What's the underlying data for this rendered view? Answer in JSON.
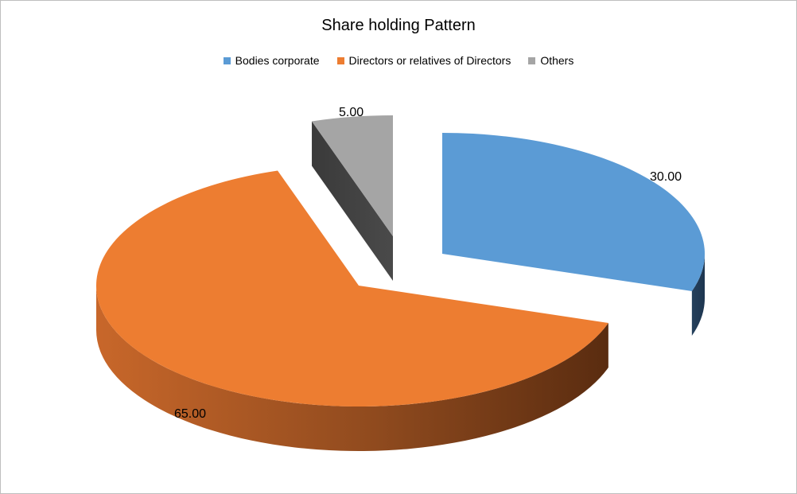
{
  "chart_data": {
    "type": "pie",
    "title": "Share holding Pattern",
    "categories": [
      "Bodies corporate",
      "Directors or relatives of Directors",
      "Others"
    ],
    "values": [
      30.0,
      65.0,
      5.0
    ],
    "data_labels": [
      "30.00",
      "65.00",
      "5.00"
    ],
    "colors": [
      "#5b9bd5",
      "#ed7d31",
      "#a5a5a5"
    ],
    "legend_position": "top",
    "exploded": true,
    "three_d": true
  }
}
